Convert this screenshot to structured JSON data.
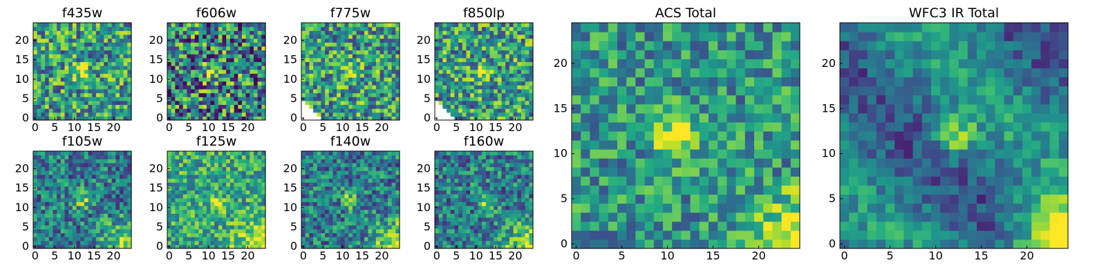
{
  "figure": {
    "background": "#ffffff"
  },
  "colormap": {
    "name": "viridis",
    "stops": [
      "#440154",
      "#482475",
      "#414487",
      "#355f8d",
      "#2a788e",
      "#21918c",
      "#22a884",
      "#44bf70",
      "#7ad151",
      "#bddf26",
      "#fde725"
    ]
  },
  "chart_data": [
    {
      "type": "heatmap",
      "title": "f435w",
      "grid_size": 25,
      "xticks": [
        0,
        5,
        10,
        15,
        20
      ],
      "yticks": [
        0,
        5,
        10,
        15,
        20
      ],
      "xlim": [
        0,
        24
      ],
      "ylim": [
        0,
        24
      ],
      "origin": "lower",
      "pattern": "noise_high",
      "hotspot": [
        12,
        12
      ],
      "seed": 11
    },
    {
      "type": "heatmap",
      "title": "f606w",
      "grid_size": 25,
      "xticks": [
        0,
        5,
        10,
        15,
        20
      ],
      "yticks": [
        0,
        5,
        10,
        15,
        20
      ],
      "xlim": [
        0,
        24
      ],
      "ylim": [
        0,
        24
      ],
      "origin": "lower",
      "pattern": "noise_mid",
      "hotspot": [
        11,
        12
      ],
      "seed": 23
    },
    {
      "type": "heatmap",
      "title": "f775w",
      "grid_size": 25,
      "xticks": [
        0,
        5,
        10,
        15,
        20
      ],
      "yticks": [
        0,
        5,
        10,
        15,
        20
      ],
      "xlim": [
        0,
        24
      ],
      "ylim": [
        0,
        24
      ],
      "origin": "lower",
      "pattern": "noise_high",
      "hotspot": [
        12,
        12
      ],
      "masked_corner": true,
      "seed": 37
    },
    {
      "type": "heatmap",
      "title": "f850lp",
      "grid_size": 25,
      "xticks": [
        0,
        5,
        10,
        15,
        20
      ],
      "yticks": [
        0,
        5,
        10,
        15,
        20
      ],
      "xlim": [
        0,
        24
      ],
      "ylim": [
        0,
        24
      ],
      "origin": "lower",
      "pattern": "noise_high",
      "hotspot": [
        12,
        12
      ],
      "masked_corner": true,
      "seed": 41
    },
    {
      "type": "heatmap",
      "title": "f105w",
      "grid_size": 25,
      "xticks": [
        0,
        5,
        10,
        15,
        20
      ],
      "yticks": [
        0,
        5,
        10,
        15,
        20
      ],
      "xlim": [
        0,
        24
      ],
      "ylim": [
        0,
        24
      ],
      "origin": "lower",
      "pattern": "ir",
      "hotspot": [
        12,
        12
      ],
      "seed": 53
    },
    {
      "type": "heatmap",
      "title": "f125w",
      "grid_size": 25,
      "xticks": [
        0,
        5,
        10,
        15,
        20
      ],
      "yticks": [
        0,
        5,
        10,
        15,
        20
      ],
      "xlim": [
        0,
        24
      ],
      "ylim": [
        0,
        24
      ],
      "origin": "lower",
      "pattern": "ir_bright",
      "hotspot": [
        12,
        11
      ],
      "seed": 67
    },
    {
      "type": "heatmap",
      "title": "f140w",
      "grid_size": 25,
      "xticks": [
        0,
        5,
        10,
        15,
        20
      ],
      "yticks": [
        0,
        5,
        10,
        15,
        20
      ],
      "xlim": [
        0,
        24
      ],
      "ylim": [
        0,
        24
      ],
      "origin": "lower",
      "pattern": "ir",
      "hotspot": [
        12,
        12
      ],
      "seed": 71
    },
    {
      "type": "heatmap",
      "title": "f160w",
      "grid_size": 25,
      "xticks": [
        0,
        5,
        10,
        15,
        20
      ],
      "yticks": [
        0,
        5,
        10,
        15,
        20
      ],
      "xlim": [
        0,
        24
      ],
      "ylim": [
        0,
        24
      ],
      "origin": "lower",
      "pattern": "ir",
      "hotspot": [
        13,
        11
      ],
      "seed": 89
    },
    {
      "type": "heatmap",
      "title": "ACS Total",
      "grid_size": 25,
      "xticks": [
        0,
        5,
        10,
        15,
        20
      ],
      "yticks": [
        0,
        5,
        10,
        15,
        20
      ],
      "xlim": [
        0,
        24
      ],
      "ylim": [
        0,
        24
      ],
      "origin": "lower",
      "pattern": "acs_total",
      "hotspot": [
        11,
        12
      ],
      "seed": 97
    },
    {
      "type": "heatmap",
      "title": "WFC3 IR Total",
      "grid_size": 25,
      "xticks": [
        0,
        5,
        10,
        15,
        20
      ],
      "yticks": [
        0,
        5,
        10,
        15,
        20
      ],
      "xlim": [
        0,
        24
      ],
      "ylim": [
        0,
        24
      ],
      "origin": "lower",
      "pattern": "ir_total",
      "hotspot": [
        12,
        12
      ],
      "seed": 103
    }
  ]
}
